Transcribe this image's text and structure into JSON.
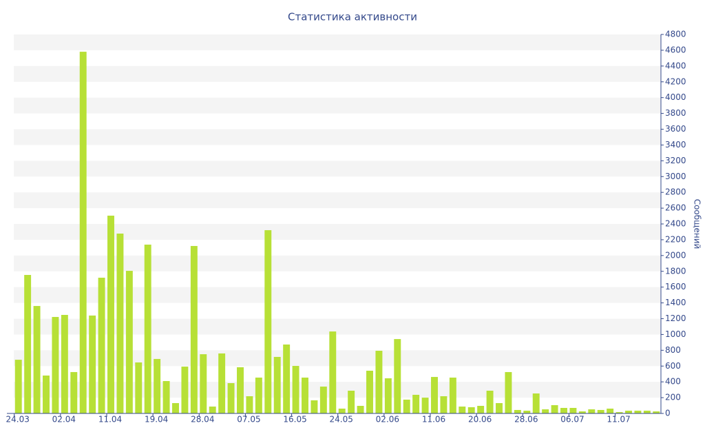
{
  "chart_data": {
    "type": "bar",
    "title": "Статистика активности",
    "y_label": "Сообщений",
    "categories": [
      "24.03",
      null,
      null,
      null,
      null,
      "02.04",
      null,
      null,
      null,
      null,
      "11.04",
      null,
      null,
      null,
      null,
      "19.04",
      null,
      null,
      null,
      null,
      "28.04",
      null,
      null,
      null,
      null,
      "07.05",
      null,
      null,
      null,
      null,
      "16.05",
      null,
      null,
      null,
      null,
      "24.05",
      null,
      null,
      null,
      null,
      "02.06",
      null,
      null,
      null,
      null,
      "11.06",
      null,
      null,
      null,
      null,
      "20.06",
      null,
      null,
      null,
      null,
      "28.06",
      null,
      null,
      null,
      null,
      "06.07",
      null,
      null,
      null,
      null,
      "11.07",
      null,
      null,
      null,
      null
    ],
    "values": [
      680,
      1754,
      1361,
      480,
      1222,
      1248,
      524,
      4581,
      1240,
      1719,
      2505,
      2278,
      1806,
      646,
      2138,
      690,
      410,
      131,
      593,
      2121,
      750,
      87,
      760,
      384,
      585,
      218,
      454,
      2321,
      716,
      873,
      602,
      454,
      166,
      340,
      1038,
      61,
      288,
      96,
      541,
      794,
      445,
      942,
      175,
      236,
      200,
      462,
      218,
      454,
      87,
      79,
      96,
      288,
      131,
      524,
      44,
      35,
      253,
      52,
      105,
      70,
      70,
      26,
      52,
      44,
      61,
      17,
      35,
      35,
      35,
      26
    ],
    "color": "#b7e036",
    "ylim": [
      0,
      4800
    ],
    "yticks": [
      0,
      200,
      400,
      600,
      800,
      1000,
      1200,
      1400,
      1600,
      1800,
      2000,
      2200,
      2400,
      2600,
      2800,
      3000,
      3200,
      3400,
      3600,
      3800,
      4000,
      4200,
      4400,
      4600,
      4800
    ],
    "grid": true
  }
}
